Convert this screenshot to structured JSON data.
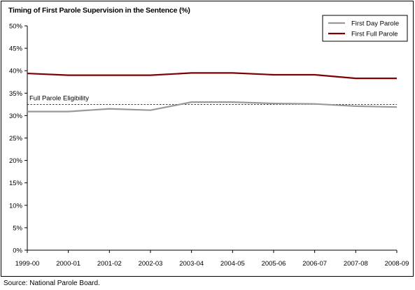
{
  "source": "Source: National Parole Board.",
  "chart_data": {
    "type": "line",
    "title": "Timing of First Parole Supervision in the Sentence (%)",
    "xlabel": "",
    "ylabel": "",
    "x": [
      "1999-00",
      "2000-01",
      "2001-02",
      "2002-03",
      "2003-04",
      "2004-05",
      "2005-06",
      "2006-07",
      "2007-08",
      "2008-09"
    ],
    "ylim": [
      0,
      50
    ],
    "yticks": [
      "0%",
      "5%",
      "10%",
      "15%",
      "20%",
      "25%",
      "30%",
      "35%",
      "40%",
      "45%",
      "50%"
    ],
    "grid": false,
    "legend_position": "top-right",
    "series": [
      {
        "name": "First Day Parole",
        "color": "#999999",
        "values": [
          30.9,
          30.9,
          31.5,
          31.2,
          33.0,
          33.0,
          32.7,
          32.6,
          32.1,
          31.9
        ]
      },
      {
        "name": "First Full Parole",
        "color": "#7f0000",
        "values": [
          39.4,
          39.0,
          39.0,
          39.0,
          39.5,
          39.5,
          39.1,
          39.1,
          38.3,
          38.3
        ]
      }
    ],
    "annotations": [
      {
        "text": "Full Parole Eligibility",
        "value": 32.5,
        "style": "dashed",
        "color": "#000000"
      }
    ]
  }
}
